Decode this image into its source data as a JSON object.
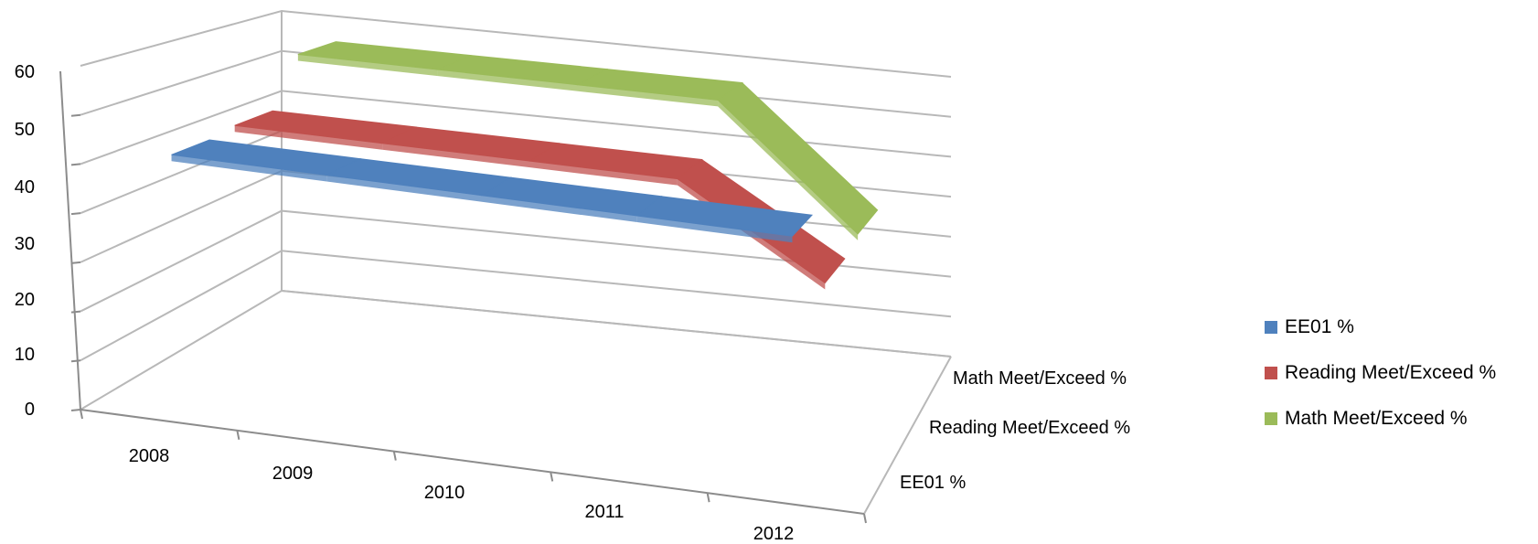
{
  "chart_data": {
    "type": "line",
    "style": "3d-ribbon",
    "categories": [
      "2008",
      "2009",
      "2010",
      "2011",
      "2012"
    ],
    "series": [
      {
        "name": "EE01 %",
        "values": [
          53,
          53,
          53,
          53,
          53
        ],
        "color": "#4F81BD"
      },
      {
        "name": "Reading Meet/Exceed %",
        "values": [
          54,
          54,
          54,
          54,
          35
        ],
        "color": "#C0504D"
      },
      {
        "name": "Math Meet/Exceed %",
        "values": [
          65,
          65,
          65,
          65,
          37
        ],
        "color": "#9BBB59"
      }
    ],
    "y_ticks": [
      "0",
      "10",
      "20",
      "30",
      "40",
      "50",
      "60"
    ],
    "ylim": [
      0,
      70
    ],
    "grid": true,
    "legend_position": "right"
  }
}
